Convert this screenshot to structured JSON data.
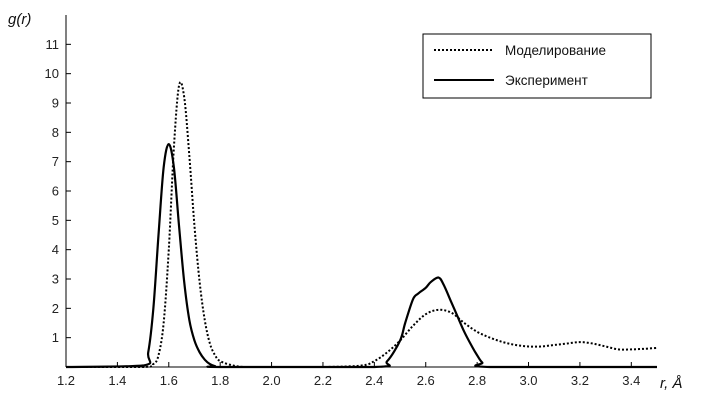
{
  "chart_data": {
    "type": "line",
    "title": "",
    "xlabel": "r, Å",
    "ylabel": "g(r)",
    "xlim": [
      1.2,
      3.5
    ],
    "ylim": [
      0,
      12
    ],
    "grid": false,
    "legend_position": "top-right",
    "x_ticks": [
      "1.2",
      "1.4",
      "1.6",
      "1.8",
      "2.0",
      "2.2",
      "2.4",
      "2.6",
      "2.8",
      "3.0",
      "3.2",
      "3.4"
    ],
    "y_ticks": [
      "1",
      "2",
      "3",
      "4",
      "5",
      "6",
      "7",
      "8",
      "9",
      "10",
      "11"
    ],
    "series": [
      {
        "name": "Моделирование",
        "style": "dotted",
        "color": "#000000",
        "x": [
          1.2,
          1.5,
          1.54,
          1.56,
          1.58,
          1.6,
          1.62,
          1.64,
          1.66,
          1.68,
          1.7,
          1.72,
          1.74,
          1.76,
          1.78,
          1.8,
          1.85,
          1.9,
          2.0,
          2.2,
          2.35,
          2.4,
          2.45,
          2.5,
          2.55,
          2.6,
          2.65,
          2.7,
          2.75,
          2.8,
          2.85,
          2.9,
          2.95,
          3.0,
          3.05,
          3.1,
          3.15,
          3.2,
          3.25,
          3.3,
          3.35,
          3.4,
          3.45,
          3.5
        ],
        "y": [
          0,
          0,
          0.1,
          0.4,
          1.5,
          4.0,
          7.5,
          9.6,
          9.2,
          7.2,
          4.8,
          2.9,
          1.6,
          0.8,
          0.4,
          0.2,
          0.05,
          0,
          0,
          0,
          0.05,
          0.2,
          0.5,
          0.9,
          1.4,
          1.8,
          1.95,
          1.85,
          1.5,
          1.2,
          1.0,
          0.85,
          0.75,
          0.7,
          0.7,
          0.75,
          0.8,
          0.85,
          0.8,
          0.7,
          0.6,
          0.6,
          0.62,
          0.65
        ]
      },
      {
        "name": "Эксперимент",
        "style": "solid",
        "color": "#000000",
        "x": [
          1.2,
          1.5,
          1.52,
          1.54,
          1.56,
          1.58,
          1.6,
          1.62,
          1.64,
          1.66,
          1.68,
          1.7,
          1.72,
          1.74,
          1.76,
          1.78,
          1.8,
          2.4,
          2.45,
          2.5,
          2.52,
          2.55,
          2.57,
          2.6,
          2.62,
          2.65,
          2.67,
          2.7,
          2.72,
          2.75,
          2.78,
          2.8,
          2.82,
          2.85,
          3.5
        ],
        "y": [
          0,
          0.05,
          0.5,
          2.0,
          4.5,
          6.8,
          7.6,
          6.8,
          4.8,
          2.9,
          1.6,
          0.9,
          0.5,
          0.25,
          0.1,
          0.03,
          0,
          0,
          0.2,
          0.9,
          1.5,
          2.3,
          2.5,
          2.7,
          2.9,
          3.05,
          2.8,
          2.2,
          1.8,
          1.2,
          0.7,
          0.4,
          0.15,
          0,
          0
        ]
      }
    ]
  }
}
